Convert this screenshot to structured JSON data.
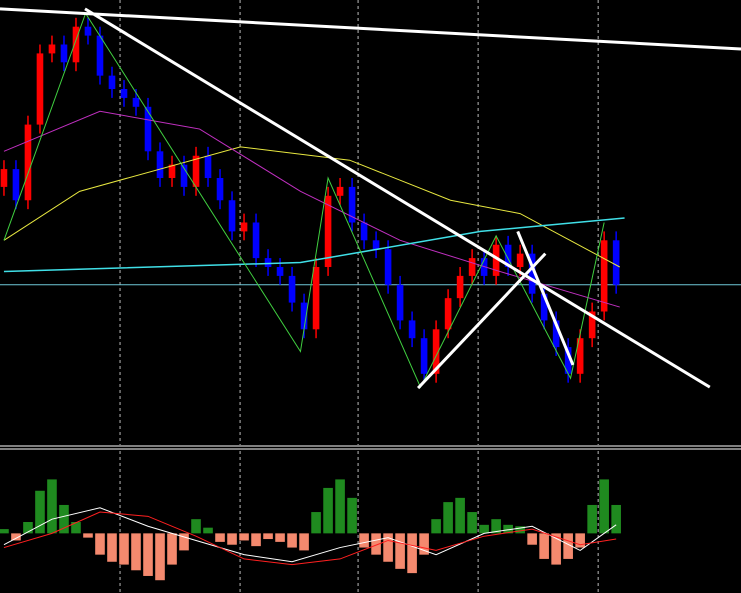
{
  "chart_data": [
    {
      "type": "candlestick",
      "xlim": [
        -0.33,
        61.4
      ],
      "ylim": [
        0,
        100
      ],
      "xticks": [
        9.67,
        19.67,
        29.5,
        39.5,
        49.5
      ],
      "grid": true,
      "up_color": "#ff0000",
      "down_color": "#0000ff",
      "open": [
        58,
        62,
        55,
        72,
        88,
        90,
        86,
        94,
        92,
        83,
        80,
        78,
        76,
        66,
        60,
        63,
        58,
        65,
        60,
        55,
        48,
        50,
        42,
        40,
        38,
        32,
        26,
        40,
        56,
        58,
        50,
        46,
        44,
        36,
        28,
        24,
        16,
        26,
        33,
        38,
        42,
        38,
        45,
        40,
        43,
        34,
        28,
        22,
        16,
        24,
        30,
        46
      ],
      "high": [
        64,
        64,
        74,
        90,
        92,
        92,
        96,
        96,
        94,
        85,
        82,
        80,
        78,
        68,
        65,
        65,
        67,
        67,
        62,
        57,
        52,
        52,
        44,
        42,
        40,
        34,
        42,
        58,
        60,
        60,
        52,
        48,
        46,
        38,
        30,
        26,
        28,
        35,
        40,
        44,
        44,
        47,
        47,
        45,
        45,
        36,
        30,
        24,
        26,
        32,
        48,
        48
      ],
      "low": [
        56,
        53,
        53,
        70,
        86,
        84,
        84,
        90,
        81,
        78,
        76,
        74,
        64,
        58,
        58,
        56,
        56,
        58,
        53,
        46,
        46,
        40,
        38,
        36,
        30,
        24,
        24,
        38,
        54,
        48,
        44,
        42,
        34,
        26,
        22,
        14,
        14,
        24,
        31,
        36,
        36,
        36,
        38,
        38,
        32,
        26,
        20,
        14,
        14,
        22,
        28,
        34
      ],
      "close": [
        62,
        55,
        72,
        88,
        90,
        86,
        94,
        92,
        83,
        80,
        78,
        76,
        66,
        60,
        63,
        58,
        65,
        60,
        55,
        48,
        50,
        42,
        40,
        38,
        32,
        26,
        40,
        56,
        58,
        50,
        46,
        44,
        36,
        28,
        24,
        16,
        26,
        33,
        38,
        42,
        38,
        45,
        40,
        43,
        34,
        28,
        22,
        16,
        24,
        30,
        46,
        36
      ],
      "hlines": [
        {
          "value": 36,
          "color": "#6fc8d8"
        }
      ],
      "lines": [
        {
          "color": "#e8e840",
          "width": 1,
          "x": [
            0,
            6.3,
            19.7,
            28.8,
            37.2,
            43,
            51.3
          ],
          "values": [
            46,
            57,
            67,
            64,
            55,
            52,
            40
          ]
        },
        {
          "color": "#c030c0",
          "width": 1,
          "x": [
            0,
            8,
            16.3,
            24.7,
            33,
            41.3,
            51.3
          ],
          "values": [
            66,
            75,
            71,
            57,
            46,
            39,
            31
          ]
        },
        {
          "color": "#40e0e8",
          "width": 1.5,
          "x": [
            0,
            24.7,
            39.7,
            51.7
          ],
          "values": [
            39,
            41,
            48,
            51
          ]
        },
        {
          "color": "#40d040",
          "width": 1,
          "x": [
            0,
            6.8,
            24.7,
            27,
            34.7,
            41,
            47.2,
            50
          ],
          "values": [
            46,
            97,
            21,
            60,
            13,
            47,
            15,
            50
          ]
        },
        {
          "color": "#ffffff",
          "width": 3,
          "x": [
            -0.33,
            61.4
          ],
          "values": [
            98,
            89
          ]
        },
        {
          "color": "#ffffff",
          "width": 3,
          "x": [
            6.75,
            58.8
          ],
          "values": [
            98,
            13
          ]
        },
        {
          "color": "#ffffff",
          "width": 3,
          "x": [
            34.5,
            45.1
          ],
          "values": [
            12.8,
            43
          ]
        },
        {
          "color": "#ffffff",
          "width": 3,
          "x": [
            42.8,
            47.4
          ],
          "values": [
            48,
            18
          ]
        }
      ]
    },
    {
      "type": "histogram-oscillator",
      "xlim": [
        -0.33,
        61.4
      ],
      "ylim": [
        -42,
        58
      ],
      "xticks": [
        9.67,
        19.67,
        29.5,
        39.5,
        49.5
      ],
      "grid": true,
      "positive_color": "#1f8a1f",
      "negative_color": "#f4896e",
      "values": [
        3,
        -5,
        8,
        30,
        38,
        20,
        8,
        -3,
        -15,
        -20,
        -22,
        -26,
        -30,
        -33,
        -22,
        -12,
        10,
        4,
        -6,
        -8,
        -5,
        -9,
        -4,
        -6,
        -10,
        -12,
        15,
        32,
        38,
        25,
        -10,
        -15,
        -20,
        -25,
        -28,
        -15,
        10,
        22,
        25,
        15,
        6,
        10,
        6,
        5,
        -8,
        -18,
        -22,
        -18,
        -10,
        20,
        38,
        20
      ],
      "lines": [
        {
          "color": "#ffffff",
          "width": 1,
          "x": [
            0,
            4,
            8,
            12,
            16,
            20,
            24,
            28,
            32,
            36,
            40,
            44,
            48,
            51
          ],
          "values": [
            -8,
            10,
            18,
            5,
            -5,
            -15,
            -20,
            -10,
            -3,
            -15,
            0,
            5,
            -12,
            6
          ]
        },
        {
          "color": "#ff2020",
          "width": 1,
          "x": [
            0,
            4,
            8,
            12,
            16,
            20,
            24,
            28,
            32,
            36,
            40,
            44,
            48,
            51
          ],
          "values": [
            -10,
            0,
            15,
            12,
            -2,
            -18,
            -22,
            -18,
            -5,
            -12,
            -2,
            3,
            -8,
            -4
          ]
        }
      ]
    }
  ]
}
